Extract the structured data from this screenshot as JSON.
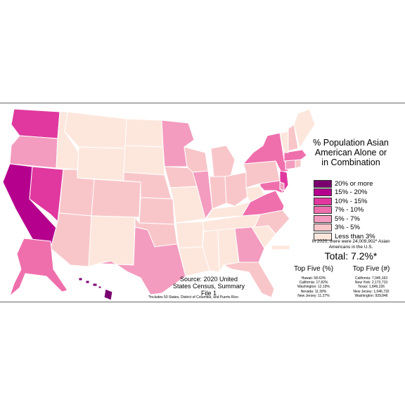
{
  "title": "% Population Asian American Alone or in Combination",
  "colors": {
    "c20_plus": "#7a0070",
    "c15_20": "#b5008e",
    "c10_15": "#e0389f",
    "c7_10": "#ef6fad",
    "c5_7": "#f39cbf",
    "c3_5": "#f8c6c9",
    "c_lt3": "#fde7dd"
  },
  "legend": [
    {
      "label": "20% or more",
      "color": "#7a0070"
    },
    {
      "label": "15% - 20%",
      "color": "#b5008e"
    },
    {
      "label": "10% - 15%",
      "color": "#e0389f"
    },
    {
      "label": "7% - 10%",
      "color": "#ef6fad"
    },
    {
      "label": "5% - 7%",
      "color": "#f39cbf"
    },
    {
      "label": "3% - 5%",
      "color": "#f8c6c9"
    },
    {
      "label": "Less than 3%",
      "color": "#fde7dd"
    }
  ],
  "note": "In 2020, there were 24,009,902* Asian Americans in the U.S.",
  "total": "Total: 7.2%*",
  "top_pct": {
    "heading": "Top Five (%)",
    "items": [
      "Hawaii: 58.63%",
      "California: 17.82%",
      "Washington: 12.19%",
      "Nevada: 11.39%",
      "New Jersey: 11.27%"
    ]
  },
  "top_num": {
    "heading": "Top Five (#)",
    "items": [
      "California: 7,045,163",
      "New York: 2,173,719",
      "Texas: 1,849,226",
      "New Jersey: 1,046,732",
      "Washington: 939,846"
    ]
  },
  "source": "Source: 2020 United States Census, Summary File 1",
  "footnote": "*Includes 50 States, District of Columbia, and Puerto Rico",
  "states": {
    "WA": "c10_15",
    "OR": "c5_7",
    "CA": "c15_20",
    "NV": "c10_15",
    "ID": "c_lt3",
    "MT": "c_lt3",
    "WY": "c_lt3",
    "UT": "c3_5",
    "AZ": "c3_5",
    "NM": "c_lt3",
    "CO": "c3_5",
    "ND": "c_lt3",
    "SD": "c_lt3",
    "NE": "c3_5",
    "KS": "c3_5",
    "OK": "c3_5",
    "TX": "c5_7",
    "MN": "c5_7",
    "IA": "c3_5",
    "MO": "c_lt3",
    "AR": "c_lt3",
    "LA": "c_lt3",
    "WI": "c3_5",
    "IL": "c5_7",
    "MI": "c3_5",
    "IN": "c3_5",
    "OH": "c3_5",
    "KY": "c_lt3",
    "TN": "c_lt3",
    "MS": "c_lt3",
    "AL": "c_lt3",
    "GA": "c5_7",
    "FL": "c3_5",
    "SC": "c_lt3",
    "NC": "c3_5",
    "VA": "c7_10",
    "WV": "c_lt3",
    "PA": "c3_5",
    "NY": "c7_10",
    "NJ": "c10_15",
    "MD": "c7_10",
    "DE": "c5_7",
    "CT": "c5_7",
    "RI": "c3_5",
    "MA": "c7_10",
    "VT": "c_lt3",
    "NH": "c3_5",
    "ME": "c_lt3",
    "AK": "c7_10",
    "HI": "c20_plus",
    "PR": "c_lt3"
  }
}
